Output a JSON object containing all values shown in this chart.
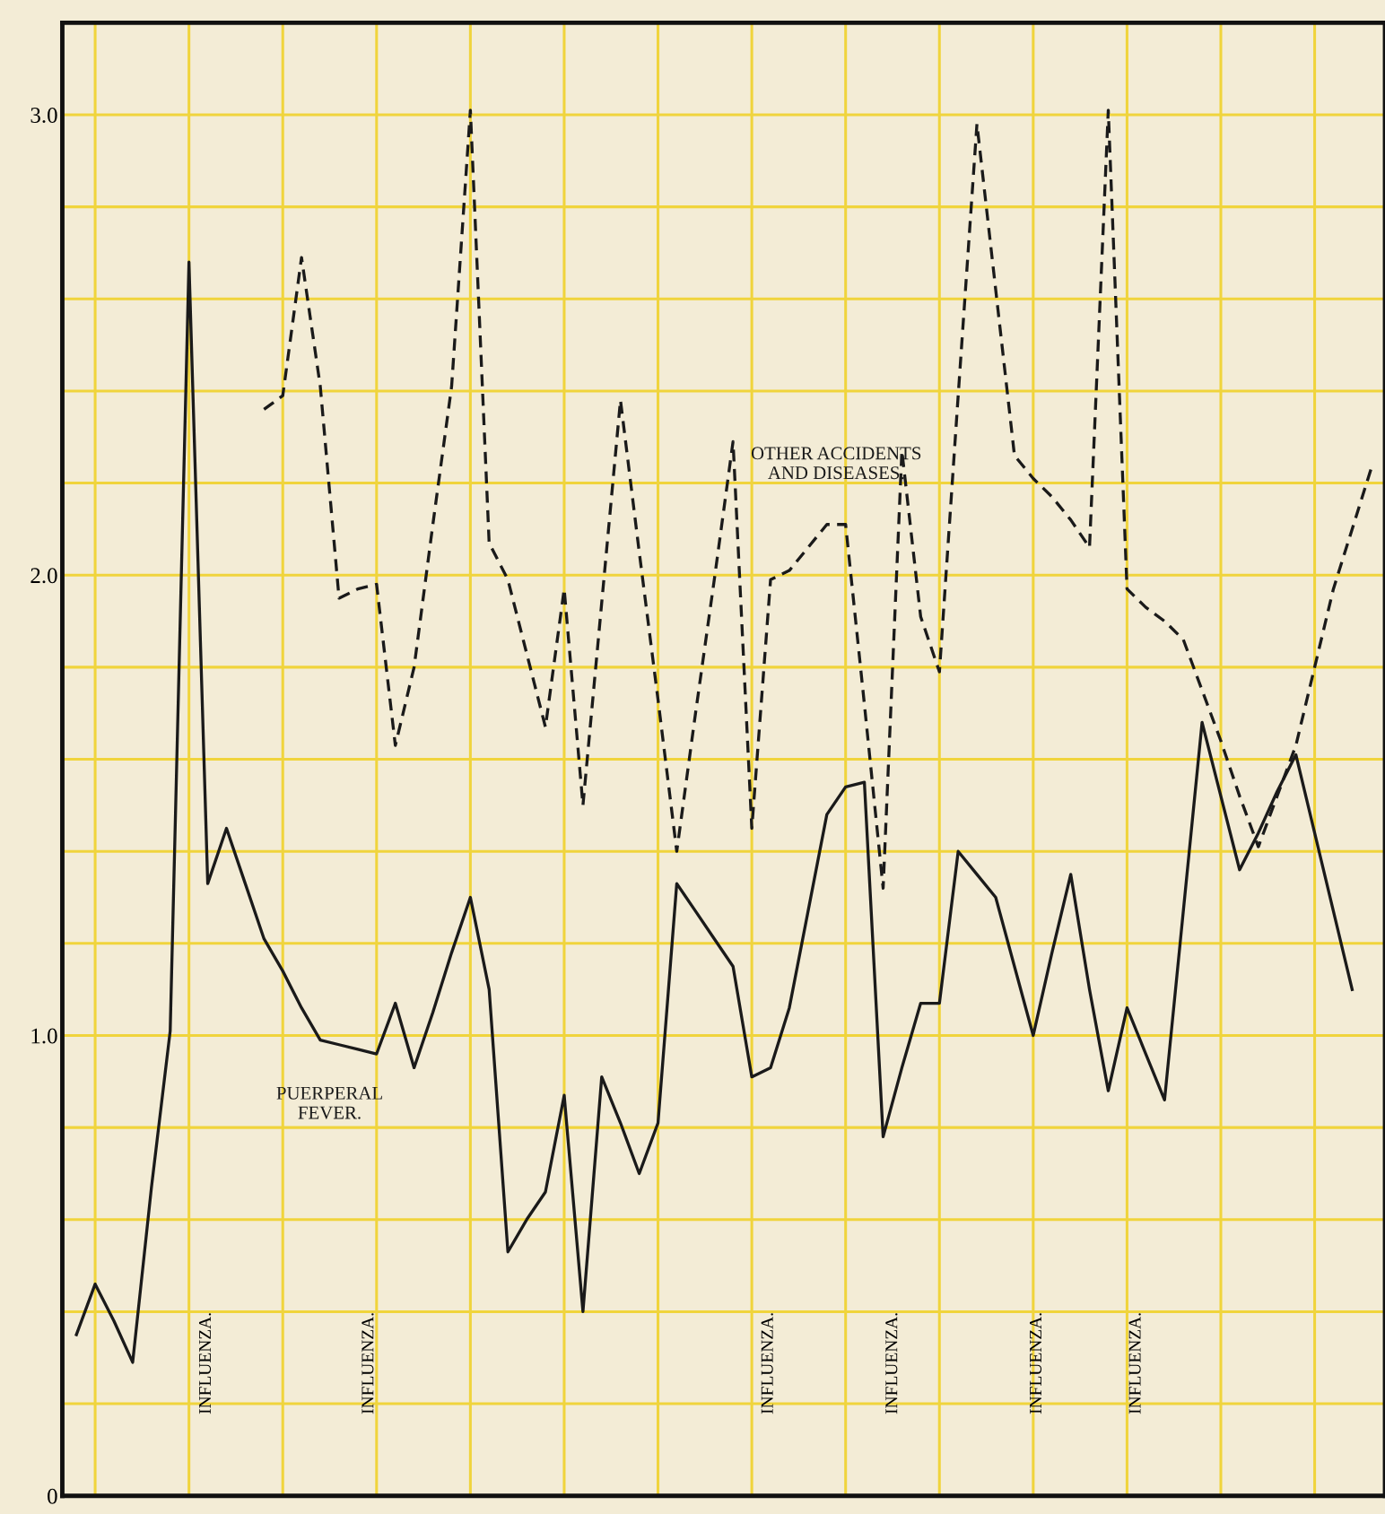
{
  "chart_data": {
    "type": "line",
    "categories": [
      null,
      null,
      null,
      null,
      null,
      null,
      null,
      null,
      null,
      null,
      null,
      null,
      null,
      null,
      null,
      null,
      null,
      null,
      null,
      null,
      null,
      null,
      null,
      null,
      null,
      null,
      null,
      null,
      null,
      null,
      null,
      null,
      null,
      null,
      null,
      null,
      null,
      null,
      null,
      null,
      null,
      null,
      null,
      null,
      null,
      null,
      null,
      null,
      null,
      null,
      null,
      null,
      null,
      null,
      null,
      null,
      null,
      null,
      null,
      null,
      null,
      null,
      null,
      null,
      null,
      null,
      null,
      null,
      null,
      null
    ],
    "ylim": [
      0,
      3.2
    ],
    "yticks": [
      0,
      {
        "value": 0.2,
        "label": null
      },
      {
        "value": 0.4,
        "label": null
      },
      {
        "value": 0.6,
        "label": null
      },
      {
        "value": 0.8,
        "label": null
      },
      {
        "value": 1.0,
        "label": "1.0"
      },
      {
        "value": 1.2,
        "label": null
      },
      {
        "value": 1.4,
        "label": null
      },
      {
        "value": 1.6,
        "label": null
      },
      {
        "value": 1.8,
        "label": null
      },
      {
        "value": 2.0,
        "label": "2.0"
      },
      {
        "value": 2.2,
        "label": null
      },
      {
        "value": 2.4,
        "label": null
      },
      {
        "value": 2.6,
        "label": null
      },
      {
        "value": 2.8,
        "label": null
      },
      {
        "value": 3.0,
        "label": "3.0"
      }
    ],
    "tick_labels": "y",
    "grid": true,
    "legend": false,
    "marker": "none",
    "series": [
      {
        "name": "PUERPERAL\nFEVER.",
        "color": "#1a1a1a",
        "line_style": "solid",
        "values": [
          0.35,
          0.46,
          0.38,
          0.29,
          0.67,
          1.01,
          2.68,
          1.33,
          1.45,
          1.33,
          1.21,
          1.14,
          1.06,
          0.99,
          0.98,
          0.97,
          0.96,
          1.07,
          0.93,
          1.05,
          1.18,
          1.3,
          1.1,
          0.53,
          0.6,
          0.66,
          0.87,
          0.4,
          0.91,
          0.81,
          0.7,
          0.81,
          1.33,
          1.27,
          1.21,
          1.15,
          0.91,
          0.93,
          1.06,
          1.27,
          1.48,
          1.54,
          1.55,
          0.78,
          0.93,
          1.07,
          1.07,
          1.4,
          1.35,
          1.3,
          1.15,
          1.0,
          1.18,
          1.35,
          1.1,
          0.88,
          1.06,
          0.96,
          0.86,
          1.27,
          1.68,
          1.52,
          1.36,
          1.44,
          1.53,
          1.61,
          1.44,
          1.27,
          1.1,
          null
        ]
      },
      {
        "name": "OTHER ACCIDENTS\nAND DISEASES.",
        "color": "#1a1a1a",
        "line_style": "dashed",
        "values": [
          null,
          null,
          null,
          null,
          null,
          null,
          null,
          null,
          null,
          null,
          2.36,
          2.39,
          2.69,
          2.41,
          1.95,
          1.97,
          1.98,
          1.63,
          1.8,
          2.11,
          2.41,
          3.01,
          2.07,
          1.99,
          1.83,
          1.67,
          1.97,
          1.5,
          1.94,
          2.38,
          2.05,
          1.73,
          1.4,
          1.7,
          1.99,
          2.29,
          1.45,
          1.99,
          2.01,
          2.06,
          2.11,
          2.11,
          1.72,
          1.32,
          2.27,
          1.91,
          1.79,
          2.39,
          2.98,
          2.62,
          2.26,
          2.21,
          2.17,
          2.12,
          2.06,
          3.01,
          1.97,
          1.93,
          1.9,
          1.86,
          1.75,
          1.64,
          1.52,
          1.41,
          1.52,
          1.63,
          1.8,
          1.97,
          2.1,
          2.23
        ]
      }
    ],
    "annotations": [
      "INFLUENZA.",
      "INFLUENZA.",
      "INFLUENZA.",
      "INFLUENZA.",
      "INFLUENZA.",
      "INFLUENZA."
    ]
  }
}
